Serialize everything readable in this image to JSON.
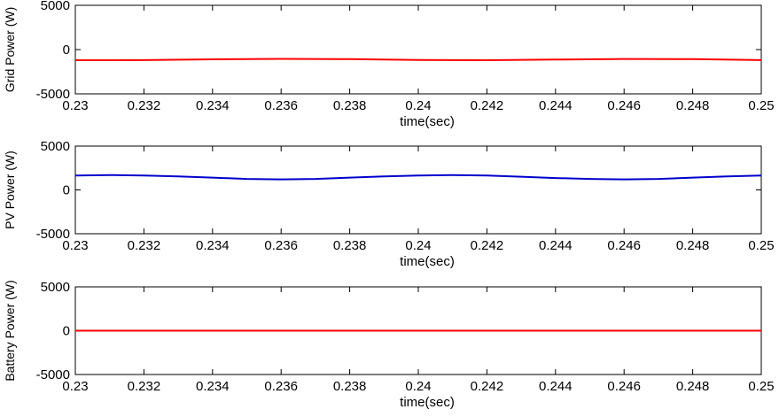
{
  "chart_data": [
    {
      "type": "line",
      "xlabel": "time(sec)",
      "ylabel": "Grid Power (W)",
      "xlim": [
        0.23,
        0.25
      ],
      "ylim": [
        -5000,
        5000
      ],
      "xticks": [
        0.23,
        0.232,
        0.234,
        0.236,
        0.238,
        0.24,
        0.242,
        0.244,
        0.246,
        0.248,
        0.25
      ],
      "xtick_labels": [
        "0.23",
        "0.232",
        "0.234",
        "0.236",
        "0.238",
        "0.24",
        "0.242",
        "0.244",
        "0.246",
        "0.248",
        "0.25"
      ],
      "yticks": [
        -5000,
        0,
        5000
      ],
      "ytick_labels": [
        "-5000",
        "0",
        "5000"
      ],
      "grid": false,
      "series": [
        {
          "color": "#ff0000",
          "x": [
            0.23,
            0.232,
            0.234,
            0.236,
            0.238,
            0.24,
            0.242,
            0.244,
            0.246,
            0.248,
            0.25
          ],
          "values": [
            -1200,
            -1190,
            -1100,
            -1050,
            -1080,
            -1180,
            -1200,
            -1130,
            -1060,
            -1080,
            -1190
          ]
        }
      ]
    },
    {
      "type": "line",
      "xlabel": "time(sec)",
      "ylabel": "PV Power (W)",
      "xlim": [
        0.23,
        0.25
      ],
      "ylim": [
        -5000,
        5000
      ],
      "xticks": [
        0.23,
        0.232,
        0.234,
        0.236,
        0.238,
        0.24,
        0.242,
        0.244,
        0.246,
        0.248,
        0.25
      ],
      "xtick_labels": [
        "0.23",
        "0.232",
        "0.234",
        "0.236",
        "0.238",
        "0.24",
        "0.242",
        "0.244",
        "0.246",
        "0.248",
        "0.25"
      ],
      "yticks": [
        -5000,
        0,
        5000
      ],
      "ytick_labels": [
        "-5000",
        "0",
        "5000"
      ],
      "grid": false,
      "series": [
        {
          "color": "#0000cc",
          "x": [
            0.23,
            0.231,
            0.232,
            0.233,
            0.234,
            0.235,
            0.236,
            0.237,
            0.238,
            0.239,
            0.24,
            0.241,
            0.242,
            0.243,
            0.244,
            0.245,
            0.246,
            0.247,
            0.248,
            0.249,
            0.25
          ],
          "values": [
            1650,
            1700,
            1650,
            1550,
            1400,
            1250,
            1200,
            1250,
            1400,
            1550,
            1650,
            1700,
            1650,
            1500,
            1350,
            1250,
            1200,
            1250,
            1400,
            1550,
            1650
          ]
        }
      ]
    },
    {
      "type": "line",
      "xlabel": "time(sec)",
      "ylabel": "Battery Power (W)",
      "xlim": [
        0.23,
        0.25
      ],
      "ylim": [
        -5000,
        5000
      ],
      "xticks": [
        0.23,
        0.232,
        0.234,
        0.236,
        0.238,
        0.24,
        0.242,
        0.244,
        0.246,
        0.248,
        0.25
      ],
      "xtick_labels": [
        "0.23",
        "0.232",
        "0.234",
        "0.236",
        "0.238",
        "0.24",
        "0.242",
        "0.244",
        "0.246",
        "0.248",
        "0.25"
      ],
      "yticks": [
        -5000,
        0,
        5000
      ],
      "ytick_labels": [
        "-5000",
        "0",
        "5000"
      ],
      "grid": false,
      "series": [
        {
          "color": "#ff0000",
          "x": [
            0.23,
            0.25
          ],
          "values": [
            0,
            0
          ]
        }
      ]
    }
  ]
}
